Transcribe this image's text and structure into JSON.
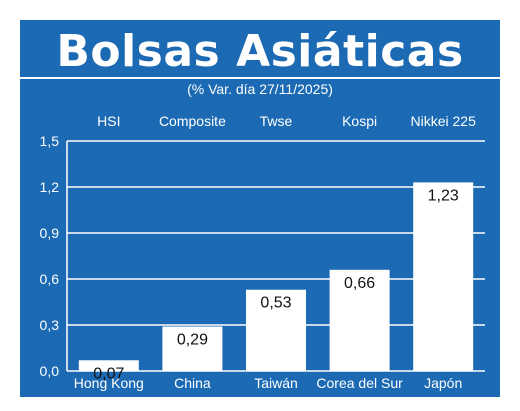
{
  "colors": {
    "background": "#1b6ab3",
    "bar": "#ffffff",
    "text": "#ffffff",
    "value_text": "#111111"
  },
  "chart_data": {
    "type": "bar",
    "title": "Bolsas Asiáticas",
    "subtitle": "(% Var. día  27/11/2025)",
    "indices": [
      "HSI",
      "Composite",
      "Twse",
      "Kospi",
      "Nikkei 225"
    ],
    "categories": [
      "Hong Kong",
      "China",
      "Taiwán",
      "Corea del Sur",
      "Japón"
    ],
    "values": [
      0.07,
      0.29,
      0.53,
      0.66,
      1.23
    ],
    "value_labels": [
      "0,07",
      "0,29",
      "0,53",
      "0,66",
      "1,23"
    ],
    "ylim": [
      0,
      1.5
    ],
    "yticks": [
      0,
      0.3,
      0.6,
      0.9,
      1.2,
      1.5
    ],
    "ytick_labels": [
      "0,0",
      "0,3",
      "0,6",
      "0,9",
      "1,2",
      "1,5"
    ],
    "grid": true,
    "xlabel": "",
    "ylabel": ""
  }
}
